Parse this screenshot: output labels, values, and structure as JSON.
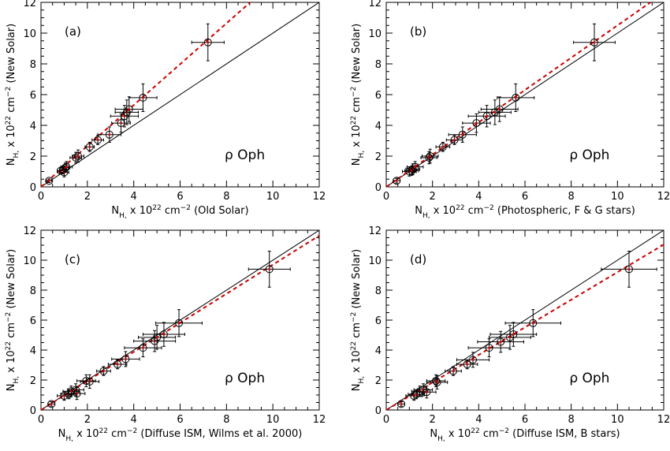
{
  "figure": {
    "background": "#ffffff",
    "axis_color": "#000000",
    "unity_line_color": "#000000",
    "fit_line_color": "#cc0000",
    "marker_color_outer": "#000000",
    "marker_color_inner": "#cc0000"
  },
  "chart_data": [
    {
      "type": "scatter",
      "panel_label": "(a)",
      "annotation": "ρ Oph",
      "xlabel": {
        "main": "N",
        "sub": "H,",
        "mid": " x 10",
        "sup": "22",
        "unit": " cm",
        "unit_sup": "−2",
        "suffix": " (Old Solar)"
      },
      "ylabel": {
        "main": "N",
        "sub": "H,",
        "mid": " x 10",
        "sup": "22",
        "unit": " cm",
        "unit_sup": "−2",
        "suffix": " (New Solar)"
      },
      "xlim": [
        0,
        12
      ],
      "ylim": [
        0,
        12
      ],
      "xticks": [
        0,
        2,
        4,
        6,
        8,
        10,
        12
      ],
      "yticks": [
        0,
        2,
        4,
        6,
        8,
        10,
        12
      ],
      "unity_line": true,
      "fit_slope": 1.33,
      "grid": false,
      "points": [
        {
          "x": 0.35,
          "y": 0.4,
          "xerr": 0.12,
          "yerr": 0.12
        },
        {
          "x": 0.85,
          "y": 1.05,
          "xerr": 0.15,
          "yerr": 0.2
        },
        {
          "x": 0.95,
          "y": 1.1,
          "xerr": 0.15,
          "yerr": 0.25
        },
        {
          "x": 1.0,
          "y": 0.95,
          "xerr": 0.2,
          "yerr": 0.3
        },
        {
          "x": 1.05,
          "y": 1.25,
          "xerr": 0.2,
          "yerr": 0.3
        },
        {
          "x": 1.1,
          "y": 1.3,
          "xerr": 0.25,
          "yerr": 0.35
        },
        {
          "x": 1.5,
          "y": 1.9,
          "xerr": 0.25,
          "yerr": 0.35
        },
        {
          "x": 1.6,
          "y": 2.0,
          "xerr": 0.25,
          "yerr": 0.4
        },
        {
          "x": 2.1,
          "y": 2.6,
          "xerr": 0.2,
          "yerr": 0.3
        },
        {
          "x": 2.45,
          "y": 3.05,
          "xerr": 0.25,
          "yerr": 0.3
        },
        {
          "x": 2.95,
          "y": 3.4,
          "xerr": 0.5,
          "yerr": 0.5
        },
        {
          "x": 3.45,
          "y": 4.15,
          "xerr": 0.4,
          "yerr": 0.6
        },
        {
          "x": 3.6,
          "y": 4.6,
          "xerr": 0.6,
          "yerr": 0.7
        },
        {
          "x": 3.7,
          "y": 4.85,
          "xerr": 0.5,
          "yerr": 0.8
        },
        {
          "x": 3.8,
          "y": 5.05,
          "xerr": 0.6,
          "yerr": 0.8
        },
        {
          "x": 4.4,
          "y": 5.8,
          "xerr": 0.6,
          "yerr": 0.9
        },
        {
          "x": 7.2,
          "y": 9.4,
          "xerr": 0.7,
          "yerr": 1.2
        }
      ]
    },
    {
      "type": "scatter",
      "panel_label": "(b)",
      "annotation": "ρ Oph",
      "xlabel": {
        "main": "N",
        "sub": "H,",
        "mid": " x 10",
        "sup": "22",
        "unit": " cm",
        "unit_sup": "−2",
        "suffix": " (Photospheric, F & G stars)"
      },
      "ylabel": {
        "main": "N",
        "sub": "H,",
        "mid": " x 10",
        "sup": "22",
        "unit": " cm",
        "unit_sup": "−2",
        "suffix": " (New Solar)"
      },
      "xlim": [
        0,
        12
      ],
      "ylim": [
        0,
        12
      ],
      "xticks": [
        0,
        2,
        4,
        6,
        8,
        10,
        12
      ],
      "yticks": [
        0,
        2,
        4,
        6,
        8,
        10,
        12
      ],
      "unity_line": true,
      "fit_slope": 1.05,
      "grid": false,
      "points": [
        {
          "x": 0.45,
          "y": 0.4,
          "xerr": 0.15,
          "yerr": 0.15
        },
        {
          "x": 1.0,
          "y": 1.0,
          "xerr": 0.3,
          "yerr": 0.3
        },
        {
          "x": 1.1,
          "y": 1.05,
          "xerr": 0.3,
          "yerr": 0.3
        },
        {
          "x": 1.15,
          "y": 1.15,
          "xerr": 0.3,
          "yerr": 0.35
        },
        {
          "x": 1.25,
          "y": 1.3,
          "xerr": 0.35,
          "yerr": 0.35
        },
        {
          "x": 1.85,
          "y": 1.9,
          "xerr": 0.35,
          "yerr": 0.4
        },
        {
          "x": 1.9,
          "y": 2.0,
          "xerr": 0.35,
          "yerr": 0.45
        },
        {
          "x": 2.45,
          "y": 2.6,
          "xerr": 0.3,
          "yerr": 0.3
        },
        {
          "x": 2.95,
          "y": 3.05,
          "xerr": 0.35,
          "yerr": 0.3
        },
        {
          "x": 3.3,
          "y": 3.4,
          "xerr": 0.6,
          "yerr": 0.5
        },
        {
          "x": 3.9,
          "y": 4.15,
          "xerr": 0.6,
          "yerr": 0.6
        },
        {
          "x": 4.35,
          "y": 4.6,
          "xerr": 0.8,
          "yerr": 0.7
        },
        {
          "x": 4.7,
          "y": 4.85,
          "xerr": 0.7,
          "yerr": 0.8
        },
        {
          "x": 4.9,
          "y": 5.05,
          "xerr": 0.8,
          "yerr": 0.8
        },
        {
          "x": 5.6,
          "y": 5.8,
          "xerr": 0.8,
          "yerr": 0.9
        },
        {
          "x": 9.0,
          "y": 9.4,
          "xerr": 0.9,
          "yerr": 1.2
        }
      ]
    },
    {
      "type": "scatter",
      "panel_label": "(c)",
      "annotation": "ρ Oph",
      "xlabel": {
        "main": "N",
        "sub": "H,",
        "mid": " x 10",
        "sup": "22",
        "unit": " cm",
        "unit_sup": "−2",
        "suffix": " (Diffuse ISM, Wilms et al. 2000)"
      },
      "ylabel": {
        "main": "N",
        "sub": "H,",
        "mid": " x 10",
        "sup": "22",
        "unit": " cm",
        "unit_sup": "−2",
        "suffix": " (New Solar)"
      },
      "xlim": [
        0,
        12
      ],
      "ylim": [
        0,
        12
      ],
      "xticks": [
        0,
        2,
        4,
        6,
        8,
        10,
        12
      ],
      "yticks": [
        0,
        2,
        4,
        6,
        8,
        10,
        12
      ],
      "unity_line": true,
      "fit_slope": 0.97,
      "grid": false,
      "points": [
        {
          "x": 0.45,
          "y": 0.4,
          "xerr": 0.15,
          "yerr": 0.15
        },
        {
          "x": 1.0,
          "y": 0.95,
          "xerr": 0.3,
          "yerr": 0.3
        },
        {
          "x": 1.2,
          "y": 1.05,
          "xerr": 0.35,
          "yerr": 0.3
        },
        {
          "x": 1.3,
          "y": 1.25,
          "xerr": 0.35,
          "yerr": 0.35
        },
        {
          "x": 1.5,
          "y": 1.35,
          "xerr": 0.35,
          "yerr": 0.4
        },
        {
          "x": 1.55,
          "y": 1.1,
          "xerr": 0.35,
          "yerr": 0.4
        },
        {
          "x": 1.95,
          "y": 1.95,
          "xerr": 0.4,
          "yerr": 0.4
        },
        {
          "x": 2.1,
          "y": 1.9,
          "xerr": 0.4,
          "yerr": 0.45
        },
        {
          "x": 2.7,
          "y": 2.6,
          "xerr": 0.3,
          "yerr": 0.3
        },
        {
          "x": 3.3,
          "y": 3.05,
          "xerr": 0.4,
          "yerr": 0.3
        },
        {
          "x": 3.65,
          "y": 3.4,
          "xerr": 0.6,
          "yerr": 0.5
        },
        {
          "x": 4.4,
          "y": 4.15,
          "xerr": 0.8,
          "yerr": 0.6
        },
        {
          "x": 4.9,
          "y": 4.6,
          "xerr": 0.9,
          "yerr": 0.7
        },
        {
          "x": 5.0,
          "y": 4.85,
          "xerr": 0.8,
          "yerr": 0.8
        },
        {
          "x": 5.3,
          "y": 5.05,
          "xerr": 0.9,
          "yerr": 0.8
        },
        {
          "x": 5.95,
          "y": 5.8,
          "xerr": 1.0,
          "yerr": 0.9
        },
        {
          "x": 9.85,
          "y": 9.4,
          "xerr": 0.9,
          "yerr": 1.2
        }
      ]
    },
    {
      "type": "scatter",
      "panel_label": "(d)",
      "annotation": "ρ Oph",
      "xlabel": {
        "main": "N",
        "sub": "H,",
        "mid": " x 10",
        "sup": "22",
        "unit": " cm",
        "unit_sup": "−2",
        "suffix": " (Diffuse ISM, B stars)"
      },
      "ylabel": {
        "main": "N",
        "sub": "H,",
        "mid": " x 10",
        "sup": "22",
        "unit": " cm",
        "unit_sup": "−2",
        "suffix": " (New Solar)"
      },
      "xlim": [
        0,
        12
      ],
      "ylim": [
        0,
        12
      ],
      "xticks": [
        0,
        2,
        4,
        6,
        8,
        10,
        12
      ],
      "yticks": [
        0,
        2,
        4,
        6,
        8,
        10,
        12
      ],
      "unity_line": true,
      "fit_slope": 0.92,
      "grid": false,
      "points": [
        {
          "x": 0.65,
          "y": 0.4,
          "xerr": 0.15,
          "yerr": 0.15
        },
        {
          "x": 1.2,
          "y": 0.95,
          "xerr": 0.35,
          "yerr": 0.3
        },
        {
          "x": 1.3,
          "y": 1.05,
          "xerr": 0.35,
          "yerr": 0.3
        },
        {
          "x": 1.45,
          "y": 1.25,
          "xerr": 0.35,
          "yerr": 0.35
        },
        {
          "x": 1.6,
          "y": 1.35,
          "xerr": 0.4,
          "yerr": 0.4
        },
        {
          "x": 1.75,
          "y": 1.2,
          "xerr": 0.4,
          "yerr": 0.4
        },
        {
          "x": 2.15,
          "y": 1.95,
          "xerr": 0.4,
          "yerr": 0.4
        },
        {
          "x": 2.2,
          "y": 1.85,
          "xerr": 0.45,
          "yerr": 0.45
        },
        {
          "x": 2.9,
          "y": 2.6,
          "xerr": 0.35,
          "yerr": 0.3
        },
        {
          "x": 3.5,
          "y": 3.05,
          "xerr": 0.45,
          "yerr": 0.3
        },
        {
          "x": 3.75,
          "y": 3.35,
          "xerr": 0.7,
          "yerr": 0.5
        },
        {
          "x": 4.45,
          "y": 4.15,
          "xerr": 0.9,
          "yerr": 0.6
        },
        {
          "x": 4.95,
          "y": 4.55,
          "xerr": 1.0,
          "yerr": 0.7
        },
        {
          "x": 5.35,
          "y": 4.85,
          "xerr": 0.9,
          "yerr": 0.8
        },
        {
          "x": 5.5,
          "y": 5.05,
          "xerr": 1.0,
          "yerr": 0.8
        },
        {
          "x": 6.35,
          "y": 5.8,
          "xerr": 1.2,
          "yerr": 0.9
        },
        {
          "x": 10.5,
          "y": 9.4,
          "xerr": 1.2,
          "yerr": 1.2
        }
      ]
    }
  ]
}
